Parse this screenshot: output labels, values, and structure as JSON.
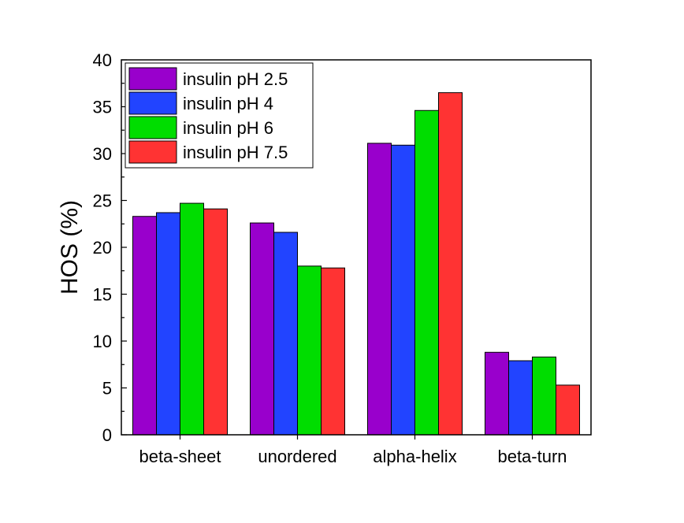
{
  "chart_data": {
    "type": "bar",
    "title": "",
    "xlabel": "",
    "ylabel": "HOS (%)",
    "ylim": [
      0,
      40
    ],
    "yticks": [
      "0",
      "5",
      "10",
      "15",
      "20",
      "25",
      "30",
      "35",
      "40"
    ],
    "categories": [
      "beta-sheet",
      "unordered",
      "alpha-helix",
      "beta-turn"
    ],
    "series": [
      {
        "name": "insulin pH 2.5",
        "color": "#9900CC",
        "values": [
          23.3,
          22.6,
          31.1,
          8.8
        ]
      },
      {
        "name": "insulin pH 4",
        "color": "#2244FF",
        "values": [
          23.7,
          21.6,
          30.9,
          7.9
        ]
      },
      {
        "name": "insulin pH 6",
        "color": "#00DD00",
        "values": [
          24.7,
          18.0,
          34.6,
          8.3
        ]
      },
      {
        "name": "insulin pH 7.5",
        "color": "#FF3333",
        "values": [
          24.1,
          17.8,
          36.5,
          5.3
        ]
      }
    ],
    "legend_position": "top-left",
    "grid": false
  }
}
